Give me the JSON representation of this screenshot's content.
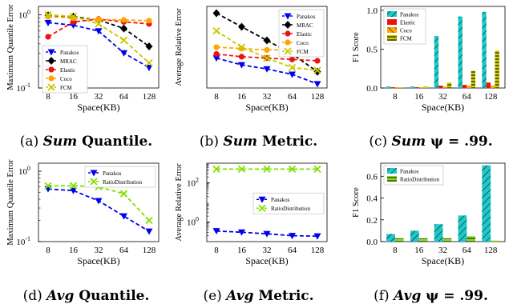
{
  "colors": {
    "Panakos": "#0000ee",
    "MRAC": "#000000",
    "Elastic": "#ee1111",
    "Coco": "#ffa500",
    "FCM": "#c8c800",
    "RatioDistribution": "#7fe000",
    "Panakos_bar": "#1ec8c8",
    "Elastic_bar": "#ee1111",
    "Coco_bar": "#ffa500",
    "FCM_bar": "#cccc00",
    "RatioDistribution_bar": "#90e020"
  },
  "captions": [
    {
      "label": "(a)",
      "italic": "Sum",
      "rest": "Quantile."
    },
    {
      "label": "(b)",
      "italic": "Sum",
      "rest": "Metric."
    },
    {
      "label": "(c)",
      "italic": "Sum",
      "rest": "ψ = .99."
    },
    {
      "label": "(d)",
      "italic": "Avg",
      "rest": "Quantile."
    },
    {
      "label": "(e)",
      "italic": "Avg",
      "rest": "Metric."
    },
    {
      "label": "(f)",
      "italic": "Avg",
      "rest": "ψ = .99."
    }
  ],
  "chart_data": [
    {
      "type": "line",
      "panel": "a",
      "xlabel": "Space(KB)",
      "ylabel": "Maximum Quantile Error",
      "x": [
        "8",
        "16",
        "32",
        "64",
        "128"
      ],
      "yscale": "log",
      "ylim": [
        0.1,
        1.3
      ],
      "yticks": [
        {
          "v": 0.1,
          "label": "10",
          "exp": "-1"
        },
        {
          "v": 1,
          "label": "10",
          "exp": "0"
        }
      ],
      "legend": "center-left",
      "series": [
        {
          "name": "Panakos",
          "values": [
            0.78,
            0.72,
            0.6,
            0.3,
            0.19
          ]
        },
        {
          "name": "MRAC",
          "values": [
            0.98,
            0.94,
            0.85,
            0.65,
            0.37
          ]
        },
        {
          "name": "Elastic",
          "values": [
            0.5,
            0.8,
            0.87,
            0.8,
            0.75
          ]
        },
        {
          "name": "Coco",
          "values": [
            0.95,
            0.9,
            0.86,
            0.85,
            0.83
          ]
        },
        {
          "name": "FCM",
          "values": [
            1.0,
            0.95,
            0.75,
            0.45,
            0.22
          ]
        }
      ]
    },
    {
      "type": "line",
      "panel": "b",
      "xlabel": "Space(KB)",
      "ylabel": "Average Relative Error",
      "x": [
        "8",
        "16",
        "32",
        "64",
        "128"
      ],
      "ylim": [
        0,
        60
      ],
      "yticks": [],
      "legend": "top-right",
      "series": [
        {
          "name": "Panakos",
          "values": [
            22,
            17,
            14,
            10,
            3
          ]
        },
        {
          "name": "MRAC",
          "values": [
            55,
            45,
            35,
            25,
            12
          ]
        },
        {
          "name": "Elastic",
          "values": [
            25,
            23,
            22,
            21,
            20
          ]
        },
        {
          "name": "Coco",
          "values": [
            30,
            29,
            28,
            28,
            27
          ]
        },
        {
          "name": "FCM",
          "values": [
            42,
            30,
            22,
            15,
            13
          ]
        }
      ]
    },
    {
      "type": "bar",
      "panel": "c",
      "xlabel": "Space(KB)",
      "ylabel": "F1 Score",
      "categories": [
        "8",
        "16",
        "32",
        "64",
        "128"
      ],
      "ylim": [
        0,
        1.05
      ],
      "yticks": [
        {
          "v": 0,
          "label": "0.0"
        },
        {
          "v": 0.5,
          "label": "0.5"
        },
        {
          "v": 1,
          "label": "1.0"
        }
      ],
      "legend": "top-left",
      "series": [
        {
          "name": "Panakos",
          "values": [
            0.02,
            0.02,
            0.67,
            0.92,
            0.98
          ]
        },
        {
          "name": "Elastic",
          "values": [
            0.01,
            0.01,
            0.03,
            0.04,
            0.07
          ]
        },
        {
          "name": "Coco",
          "values": [
            0.01,
            0.01,
            0.02,
            0.03,
            0.03
          ]
        },
        {
          "name": "FCM",
          "values": [
            0.01,
            0.02,
            0.07,
            0.22,
            0.48
          ]
        }
      ]
    },
    {
      "type": "line",
      "panel": "d",
      "xlabel": "Space(KB)",
      "ylabel": "Maximum Quantile Error",
      "x": [
        "8",
        "16",
        "32",
        "64",
        "128"
      ],
      "yscale": "log",
      "ylim": [
        0.1,
        1.3
      ],
      "yticks": [
        {
          "v": 0.1,
          "label": "10",
          "exp": "-1"
        },
        {
          "v": 1,
          "label": "10",
          "exp": "0"
        }
      ],
      "legend": "top-right",
      "series": [
        {
          "name": "Panakos",
          "values": [
            0.56,
            0.53,
            0.38,
            0.23,
            0.14
          ]
        },
        {
          "name": "RatioDistribution",
          "values": [
            0.62,
            0.62,
            0.6,
            0.48,
            0.2
          ]
        }
      ]
    },
    {
      "type": "line",
      "panel": "e",
      "xlabel": "Space(KB)",
      "ylabel": "Average Relative Error",
      "x": [
        "8",
        "16",
        "32",
        "64",
        "128"
      ],
      "yscale": "log",
      "ylim": [
        0.1,
        1000
      ],
      "yticks": [
        {
          "v": 1,
          "label": "10",
          "exp": "0"
        },
        {
          "v": 100,
          "label": "10",
          "exp": "2"
        }
      ],
      "legend": "center-right",
      "series": [
        {
          "name": "Panakos",
          "values": [
            0.35,
            0.3,
            0.25,
            0.2,
            0.19
          ]
        },
        {
          "name": "RatioDistribution",
          "values": [
            500,
            500,
            500,
            500,
            500
          ]
        }
      ]
    },
    {
      "type": "bar",
      "panel": "f",
      "xlabel": "Space(KB)",
      "ylabel": "F1 Score",
      "categories": [
        "8",
        "16",
        "32",
        "64",
        "128"
      ],
      "ylim": [
        0,
        0.72
      ],
      "yticks": [
        {
          "v": 0,
          "label": "0.0"
        },
        {
          "v": 0.2,
          "label": "0.2"
        },
        {
          "v": 0.4,
          "label": "0.4"
        },
        {
          "v": 0.6,
          "label": "0.6"
        }
      ],
      "legend": "top-left",
      "series": [
        {
          "name": "Panakos",
          "values": [
            0.07,
            0.1,
            0.16,
            0.24,
            0.7
          ]
        },
        {
          "name": "RatioDistribution",
          "values": [
            0.03,
            0.03,
            0.03,
            0.05,
            0.01
          ]
        }
      ]
    }
  ]
}
